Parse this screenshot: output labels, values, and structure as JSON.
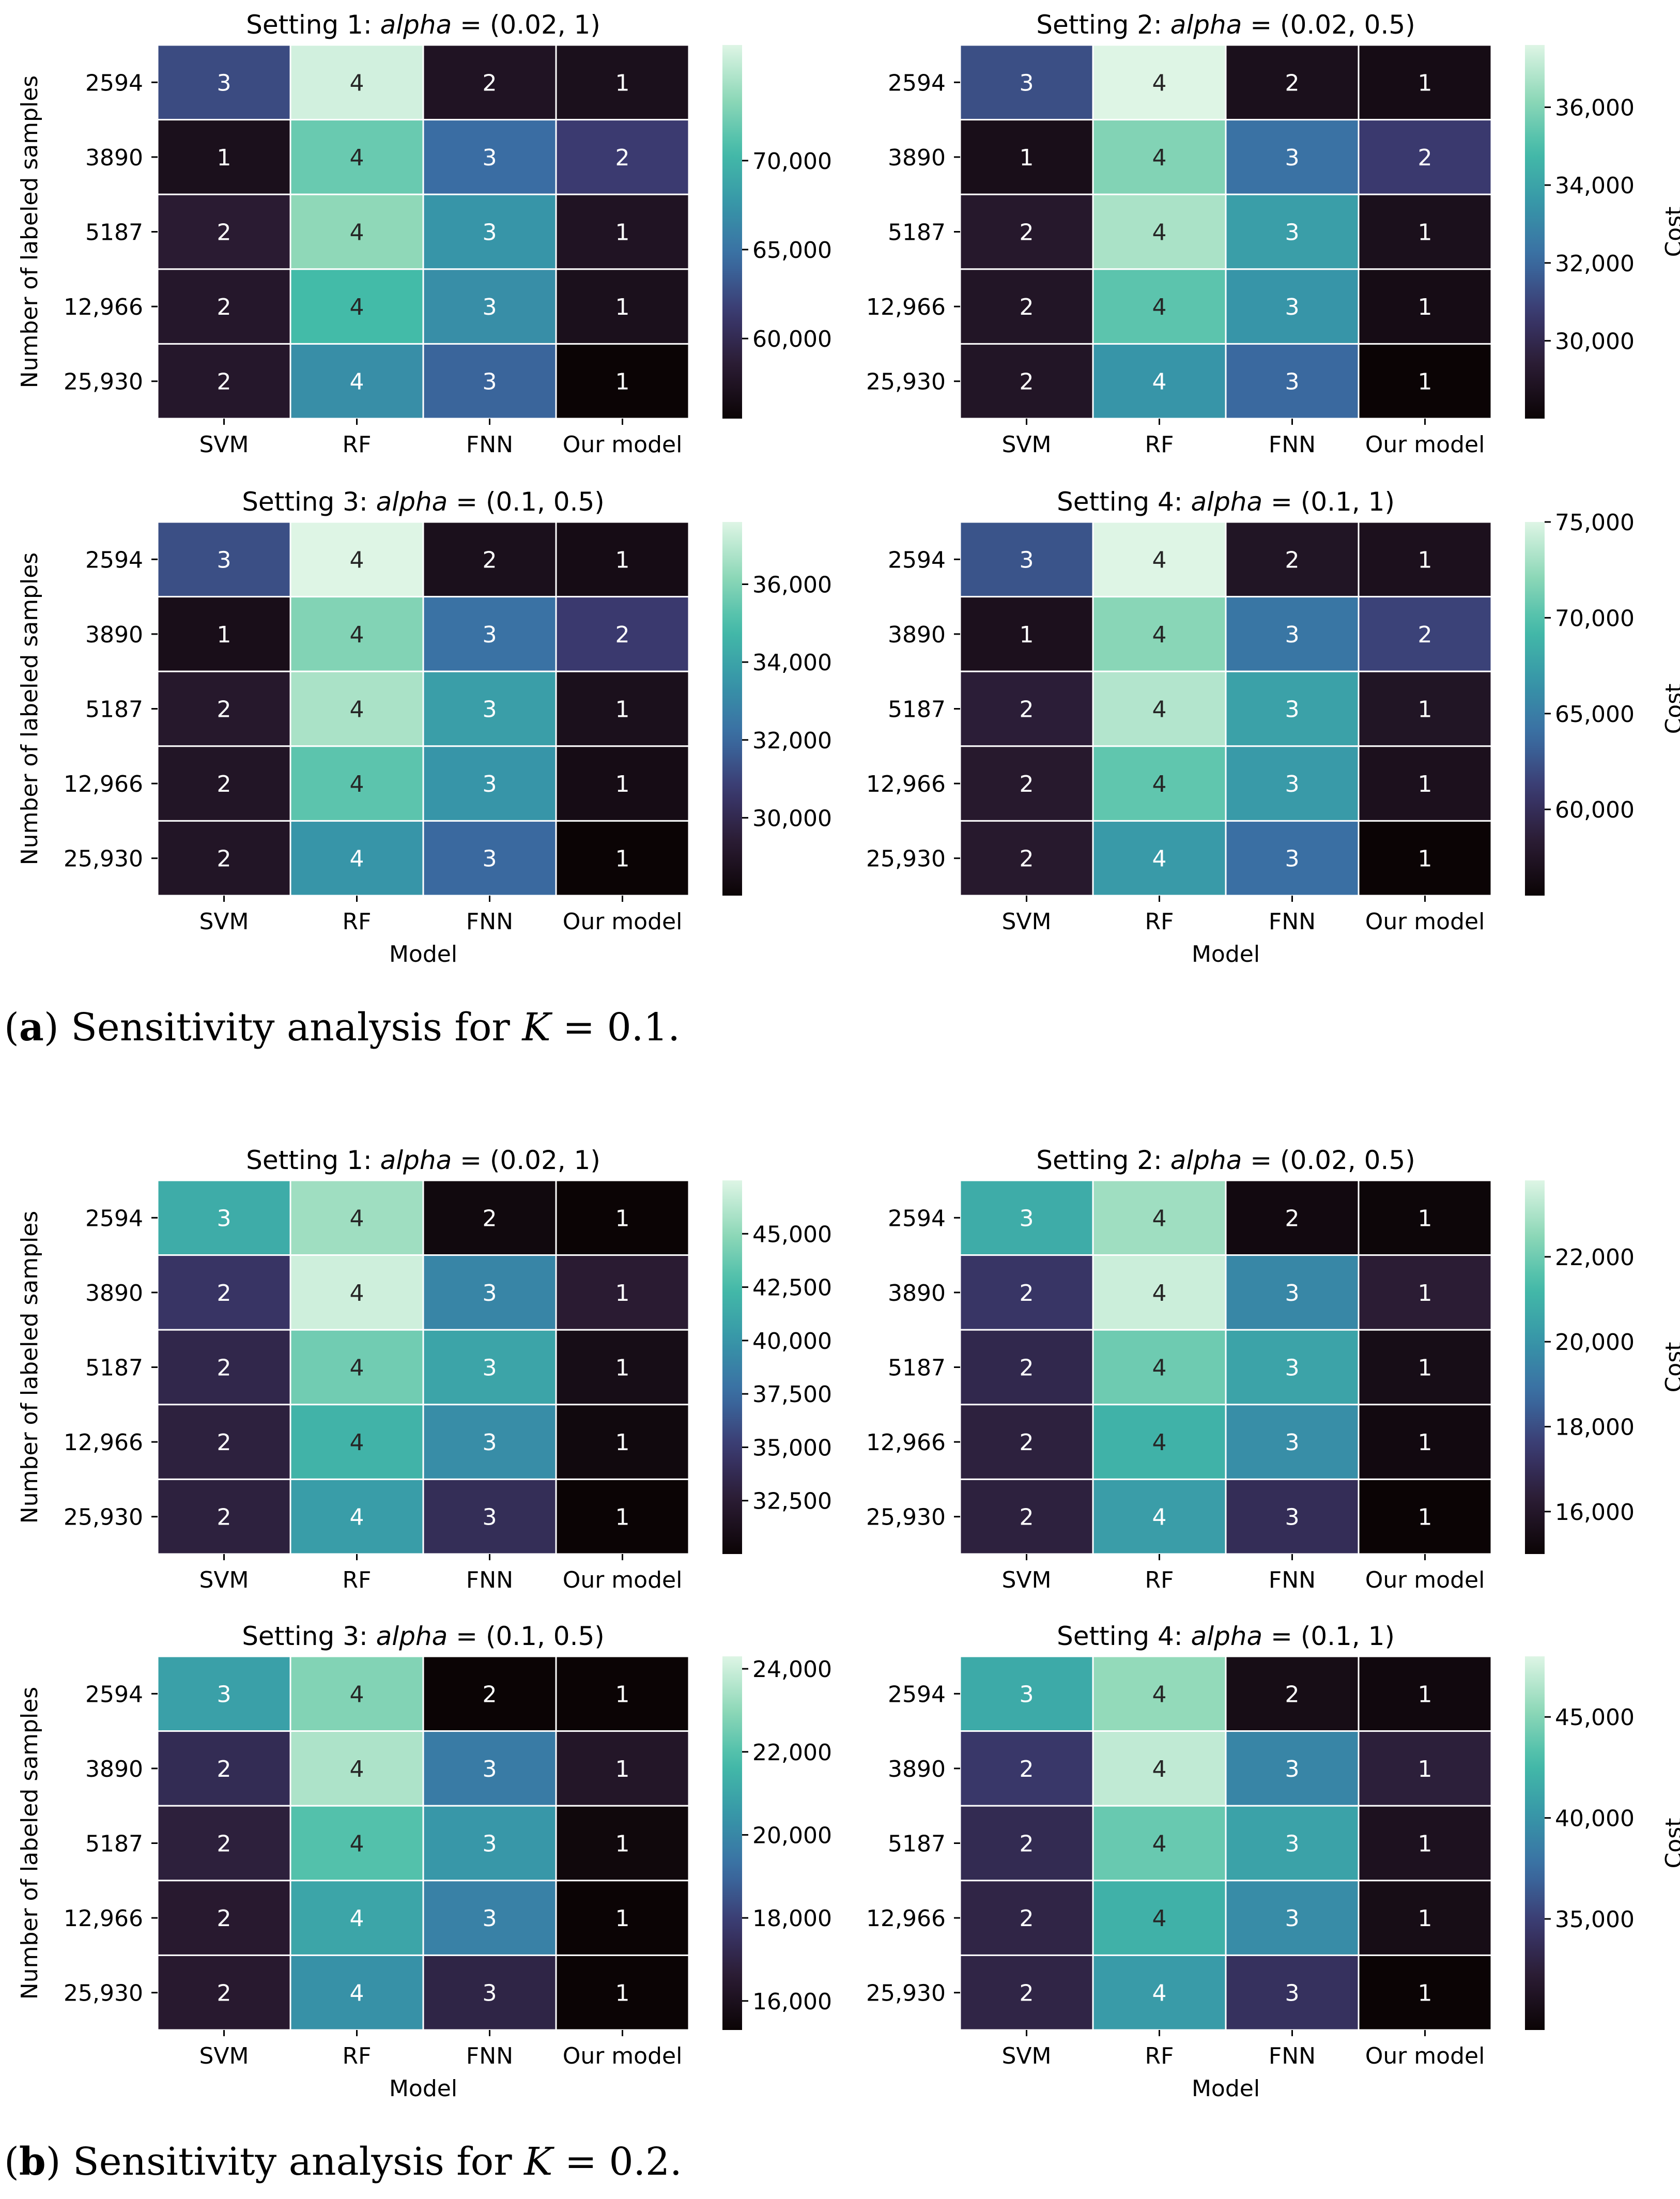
{
  "captions": {
    "a": {
      "letter": "a",
      "text": " Sensitivity analysis for ",
      "var": "K",
      "eq": " = 0.1."
    },
    "b": {
      "letter": "b",
      "text": " Sensitivity analysis for ",
      "var": "K",
      "eq": " = 0.2."
    }
  },
  "colormap": [
    "#0b0405",
    "#2a1b32",
    "#3b3a70",
    "#3a6da3",
    "#3795a8",
    "#43bba8",
    "#8fd8b8",
    "#def5e5"
  ],
  "chart_data": [
    {
      "type": "heatmap",
      "group": "a",
      "title_prefix": "Setting 1: ",
      "title_var": "alpha",
      "title_suffix": " = (0.02, 1)",
      "xlabel": "",
      "ylabel": "Number of labeled samples",
      "x_categories": [
        "SVM",
        "RF",
        "FNN",
        "Our model"
      ],
      "y_categories": [
        "2594",
        "3890",
        "5187",
        "12,966",
        "25,930"
      ],
      "annotations": [
        [
          3,
          4,
          2,
          1
        ],
        [
          1,
          4,
          3,
          2
        ],
        [
          2,
          4,
          3,
          1
        ],
        [
          2,
          4,
          3,
          1
        ],
        [
          2,
          4,
          3,
          1
        ]
      ],
      "cost": [
        [
          62500,
          76000,
          57500,
          57000
        ],
        [
          57000,
          72000,
          64500,
          61500
        ],
        [
          58500,
          73500,
          67500,
          57500
        ],
        [
          58000,
          70500,
          67000,
          57000
        ],
        [
          58000,
          67000,
          64000,
          55500
        ]
      ],
      "colorbar": {
        "label": "",
        "range": [
          55500,
          76500
        ],
        "ticks": [
          60000,
          65000,
          70000
        ],
        "tick_labels": [
          "60,000",
          "65,000",
          "70,000"
        ]
      }
    },
    {
      "type": "heatmap",
      "group": "a",
      "title_prefix": "Setting 2: ",
      "title_var": "alpha",
      "title_suffix": " = (0.02, 0.5)",
      "xlabel": "",
      "ylabel": "",
      "x_categories": [
        "SVM",
        "RF",
        "FNN",
        "Our model"
      ],
      "y_categories": [
        "2594",
        "3890",
        "5187",
        "12,966",
        "25,930"
      ],
      "annotations": [
        [
          3,
          4,
          2,
          1
        ],
        [
          1,
          4,
          3,
          2
        ],
        [
          2,
          4,
          3,
          1
        ],
        [
          2,
          4,
          3,
          1
        ],
        [
          2,
          4,
          3,
          1
        ]
      ],
      "cost": [
        [
          31300,
          37800,
          28700,
          28500
        ],
        [
          28600,
          36000,
          32300,
          30700
        ],
        [
          29200,
          36700,
          33800,
          28700
        ],
        [
          29000,
          35300,
          33500,
          28500
        ],
        [
          29000,
          33500,
          32000,
          28000
        ]
      ],
      "colorbar": {
        "label": "Cost",
        "range": [
          28000,
          37600
        ],
        "ticks": [
          30000,
          32000,
          34000,
          36000
        ],
        "tick_labels": [
          "30,000",
          "32,000",
          "34,000",
          "36,000"
        ]
      }
    },
    {
      "type": "heatmap",
      "group": "a",
      "title_prefix": "Setting 3: ",
      "title_var": "alpha",
      "title_suffix": " = (0.1, 0.5)",
      "xlabel": "Model",
      "ylabel": "Number of labeled samples",
      "x_categories": [
        "SVM",
        "RF",
        "FNN",
        "Our model"
      ],
      "y_categories": [
        "2594",
        "3890",
        "5187",
        "12,966",
        "25,930"
      ],
      "annotations": [
        [
          3,
          4,
          2,
          1
        ],
        [
          1,
          4,
          3,
          2
        ],
        [
          2,
          4,
          3,
          1
        ],
        [
          2,
          4,
          3,
          1
        ],
        [
          2,
          4,
          3,
          1
        ]
      ],
      "cost": [
        [
          31300,
          37800,
          28700,
          28500
        ],
        [
          28600,
          36000,
          32300,
          30700
        ],
        [
          29200,
          36700,
          33800,
          28700
        ],
        [
          29000,
          35300,
          33500,
          28500
        ],
        [
          29000,
          33500,
          32000,
          28000
        ]
      ],
      "colorbar": {
        "label": "",
        "range": [
          28000,
          37600
        ],
        "ticks": [
          30000,
          32000,
          34000,
          36000
        ],
        "tick_labels": [
          "30,000",
          "32,000",
          "34,000",
          "36,000"
        ]
      }
    },
    {
      "type": "heatmap",
      "group": "a",
      "title_prefix": "Setting 4: ",
      "title_var": "alpha",
      "title_suffix": " = (0.1, 1)",
      "xlabel": "Model",
      "ylabel": "",
      "x_categories": [
        "SVM",
        "RF",
        "FNN",
        "Our model"
      ],
      "y_categories": [
        "2594",
        "3890",
        "5187",
        "12,966",
        "25,930"
      ],
      "annotations": [
        [
          3,
          4,
          2,
          1
        ],
        [
          1,
          4,
          3,
          2
        ],
        [
          2,
          4,
          3,
          1
        ],
        [
          2,
          4,
          3,
          1
        ],
        [
          2,
          4,
          3,
          1
        ]
      ],
      "cost": [
        [
          62500,
          76000,
          57500,
          57000
        ],
        [
          57000,
          72000,
          64500,
          61500
        ],
        [
          58500,
          73500,
          67500,
          57500
        ],
        [
          58000,
          70500,
          67000,
          57000
        ],
        [
          58000,
          67000,
          64000,
          55500
        ]
      ],
      "colorbar": {
        "label": "Cost",
        "range": [
          55500,
          75000
        ],
        "ticks": [
          60000,
          65000,
          70000,
          75000
        ],
        "tick_labels": [
          "60,000",
          "65,000",
          "70,000",
          "75,000"
        ]
      }
    },
    {
      "type": "heatmap",
      "group": "b",
      "title_prefix": "Setting 1: ",
      "title_var": "alpha",
      "title_suffix": " = (0.02, 1)",
      "xlabel": "",
      "ylabel": "Number of labeled samples",
      "x_categories": [
        "SVM",
        "RF",
        "FNN",
        "Our model"
      ],
      "y_categories": [
        "2594",
        "3890",
        "5187",
        "12,966",
        "25,930"
      ],
      "annotations": [
        [
          3,
          4,
          2,
          1
        ],
        [
          2,
          4,
          3,
          1
        ],
        [
          2,
          4,
          3,
          1
        ],
        [
          2,
          4,
          3,
          1
        ],
        [
          2,
          4,
          3,
          1
        ]
      ],
      "cost": [
        [
          41500,
          45500,
          30500,
          30000
        ],
        [
          34500,
          47000,
          39000,
          32500
        ],
        [
          33500,
          44000,
          41000,
          31000
        ],
        [
          33000,
          42000,
          39500,
          30500
        ],
        [
          33000,
          40500,
          34000,
          29500
        ]
      ],
      "colorbar": {
        "label": "",
        "range": [
          30000,
          47500
        ],
        "ticks": [
          32500,
          35000,
          37500,
          40000,
          42500,
          45000
        ],
        "tick_labels": [
          "32,500",
          "35,000",
          "37,500",
          "40,000",
          "42,500",
          "45,000"
        ]
      }
    },
    {
      "type": "heatmap",
      "group": "b",
      "title_prefix": "Setting 2: ",
      "title_var": "alpha",
      "title_suffix": " = (0.02, 0.5)",
      "xlabel": "",
      "ylabel": "",
      "x_categories": [
        "SVM",
        "RF",
        "FNN",
        "Our model"
      ],
      "y_categories": [
        "2594",
        "3890",
        "5187",
        "12,966",
        "25,930"
      ],
      "annotations": [
        [
          3,
          4,
          2,
          1
        ],
        [
          2,
          4,
          3,
          1
        ],
        [
          2,
          4,
          3,
          1
        ],
        [
          2,
          4,
          3,
          1
        ],
        [
          2,
          4,
          3,
          1
        ]
      ],
      "cost": [
        [
          20800,
          22800,
          15300,
          15100
        ],
        [
          17300,
          23500,
          19600,
          16300
        ],
        [
          16800,
          22000,
          20500,
          15500
        ],
        [
          16500,
          21000,
          19800,
          15300
        ],
        [
          16500,
          20300,
          17000,
          14800
        ]
      ],
      "colorbar": {
        "label": "Cost",
        "range": [
          15000,
          23800
        ],
        "ticks": [
          16000,
          18000,
          20000,
          22000
        ],
        "tick_labels": [
          "16,000",
          "18,000",
          "20,000",
          "22,000"
        ]
      }
    },
    {
      "type": "heatmap",
      "group": "b",
      "title_prefix": "Setting 3: ",
      "title_var": "alpha",
      "title_suffix": " = (0.1, 0.5)",
      "xlabel": "Model",
      "ylabel": "Number of labeled samples",
      "x_categories": [
        "SVM",
        "RF",
        "FNN",
        "Our model"
      ],
      "y_categories": [
        "2594",
        "3890",
        "5187",
        "12,966",
        "25,930"
      ],
      "annotations": [
        [
          3,
          4,
          2,
          1
        ],
        [
          2,
          4,
          3,
          1
        ],
        [
          2,
          4,
          3,
          1
        ],
        [
          2,
          4,
          3,
          1
        ],
        [
          2,
          4,
          3,
          1
        ]
      ],
      "cost": [
        [
          20800,
          22800,
          15300,
          15100
        ],
        [
          17300,
          23500,
          19600,
          16300
        ],
        [
          16800,
          22000,
          20500,
          15500
        ],
        [
          16500,
          21000,
          19800,
          15300
        ],
        [
          16500,
          20300,
          17000,
          14800
        ]
      ],
      "colorbar": {
        "label": "",
        "range": [
          15300,
          24300
        ],
        "ticks": [
          16000,
          18000,
          20000,
          22000,
          24000
        ],
        "tick_labels": [
          "16,000",
          "18,000",
          "20,000",
          "22,000",
          "24,000"
        ]
      }
    },
    {
      "type": "heatmap",
      "group": "b",
      "title_prefix": "Setting 4: ",
      "title_var": "alpha",
      "title_suffix": " = (0.1, 1)",
      "xlabel": "Model",
      "ylabel": "",
      "x_categories": [
        "SVM",
        "RF",
        "FNN",
        "Our model"
      ],
      "y_categories": [
        "2594",
        "3890",
        "5187",
        "12,966",
        "25,930"
      ],
      "annotations": [
        [
          3,
          4,
          2,
          1
        ],
        [
          2,
          4,
          3,
          1
        ],
        [
          2,
          4,
          3,
          1
        ],
        [
          2,
          4,
          3,
          1
        ],
        [
          2,
          4,
          3,
          1
        ]
      ],
      "cost": [
        [
          41500,
          45500,
          30500,
          30000
        ],
        [
          34500,
          47000,
          39000,
          32500
        ],
        [
          33500,
          44000,
          41000,
          31000
        ],
        [
          33000,
          42000,
          39500,
          30500
        ],
        [
          33000,
          40500,
          34000,
          29500
        ]
      ],
      "colorbar": {
        "label": "Cost",
        "range": [
          29500,
          48000
        ],
        "ticks": [
          35000,
          40000,
          45000
        ],
        "tick_labels": [
          "35,000",
          "40,000",
          "45,000"
        ]
      }
    }
  ]
}
